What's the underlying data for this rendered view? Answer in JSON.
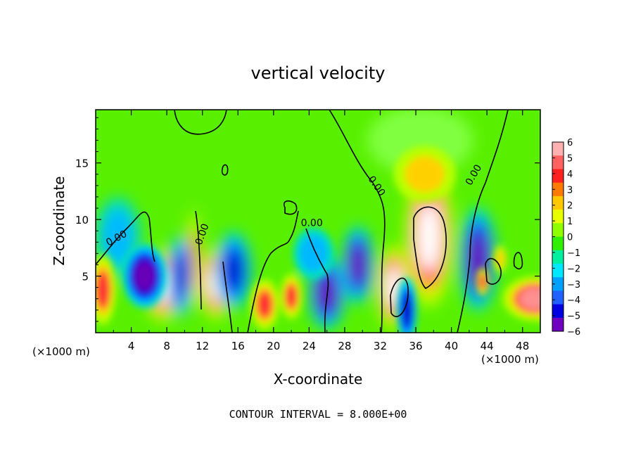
{
  "chart_data": {
    "type": "heatmap",
    "title": "vertical velocity",
    "xlabel": "X-coordinate",
    "ylabel": "Z-coordinate",
    "x_unit_left": "(×1000 m)",
    "x_unit_right": "(×1000 m)",
    "footer": "CONTOUR INTERVAL = 8.000E+00",
    "xlim": [
      0,
      50
    ],
    "ylim": [
      0,
      19.7
    ],
    "x_ticks": [
      4,
      8,
      12,
      16,
      20,
      24,
      28,
      32,
      36,
      40,
      44,
      48
    ],
    "y_ticks": [
      5,
      10,
      15
    ],
    "colorbar": {
      "range": [
        -6,
        6
      ],
      "labels": [
        "6",
        "5",
        "4",
        "3",
        "2",
        "1",
        "0",
        "−1",
        "−2",
        "−3",
        "−4",
        "−5",
        "−6"
      ],
      "colors": [
        "#ffb0b0",
        "#ff6060",
        "#ff2020",
        "#ff7a00",
        "#ffc800",
        "#e8ff00",
        "#90ff00",
        "#30f000",
        "#00f0a0",
        "#00e8ff",
        "#00a0ff",
        "#2060ff",
        "#0000e0",
        "#7000c0"
      ]
    },
    "contour_labels": [
      {
        "text": "0.00",
        "x": 2.5,
        "z": 8.1
      },
      {
        "text": "0.00",
        "x": 12.3,
        "z": 8.6
      },
      {
        "text": "0.00",
        "x": 24.3,
        "z": 9.4
      },
      {
        "text": "0.00",
        "x": 31.3,
        "z": 12.8
      },
      {
        "text": "0.00",
        "x": 42.8,
        "z": 13.8
      }
    ],
    "features": [
      {
        "type": "updraft",
        "x": 37.5,
        "z": 8.5,
        "rx": 2.2,
        "rz": 5.0,
        "w": 10
      },
      {
        "type": "updraft",
        "x": 37.0,
        "z": 14.0,
        "rx": 2.8,
        "rz": 2.0,
        "w": 2
      },
      {
        "type": "updraft",
        "x": 33.5,
        "z": 4.0,
        "rx": 1.5,
        "rz": 3.0,
        "w": 9
      },
      {
        "type": "updraft",
        "x": 7.5,
        "z": 4.2,
        "rx": 1.7,
        "rz": 2.6,
        "w": 9
      },
      {
        "type": "updraft",
        "x": 13.5,
        "z": 4.4,
        "rx": 1.5,
        "rz": 2.6,
        "w": 9
      },
      {
        "type": "updraft",
        "x": 11.0,
        "z": 6.5,
        "rx": 0.6,
        "rz": 3.5,
        "w": 4
      },
      {
        "type": "updraft",
        "x": 19.0,
        "z": 2.5,
        "rx": 1.3,
        "rz": 1.8,
        "w": 5
      },
      {
        "type": "updraft",
        "x": 22.0,
        "z": 3.2,
        "rx": 1.0,
        "rz": 1.6,
        "w": 5
      },
      {
        "type": "updraft",
        "x": 49.5,
        "z": 3.0,
        "rx": 3.0,
        "rz": 1.6,
        "w": 7
      },
      {
        "type": "updraft",
        "x": 0.8,
        "z": 3.8,
        "rx": 1.2,
        "rz": 2.5,
        "w": 5
      },
      {
        "type": "updraft",
        "x": 45.5,
        "z": 6.5,
        "rx": 0.6,
        "rz": 1.0,
        "w": 3
      },
      {
        "type": "updraft",
        "x": 43.5,
        "z": 4.5,
        "rx": 0.6,
        "rz": 1.0,
        "w": 5
      },
      {
        "type": "downdraft",
        "x": 5.5,
        "z": 5.0,
        "rx": 2.2,
        "rz": 2.5,
        "w": -5
      },
      {
        "type": "downdraft",
        "x": 9.5,
        "z": 5.0,
        "rx": 1.2,
        "rz": 3.2,
        "w": -4
      },
      {
        "type": "downdraft",
        "x": 15.5,
        "z": 5.5,
        "rx": 1.8,
        "rz": 3.0,
        "w": -4
      },
      {
        "type": "downdraft",
        "x": 26.0,
        "z": 3.5,
        "rx": 1.8,
        "rz": 2.8,
        "w": -5
      },
      {
        "type": "downdraft",
        "x": 29.5,
        "z": 6.0,
        "rx": 1.6,
        "rz": 3.0,
        "w": -5
      },
      {
        "type": "downdraft",
        "x": 35.0,
        "z": 2.0,
        "rx": 1.0,
        "rz": 2.5,
        "w": -4
      },
      {
        "type": "downdraft",
        "x": 43.0,
        "z": 6.5,
        "rx": 1.8,
        "rz": 4.0,
        "w": -5
      },
      {
        "type": "downdraft",
        "x": 2.5,
        "z": 8.5,
        "rx": 2.2,
        "rz": 3.0,
        "w": -2
      },
      {
        "type": "downdraft",
        "x": 24.5,
        "z": 7.0,
        "rx": 2.0,
        "rz": 2.0,
        "w": -2.5
      },
      {
        "type": "downdraft",
        "x": 36.5,
        "z": 17.0,
        "rx": 6.0,
        "rz": 3.0,
        "w": -0.4
      }
    ]
  }
}
